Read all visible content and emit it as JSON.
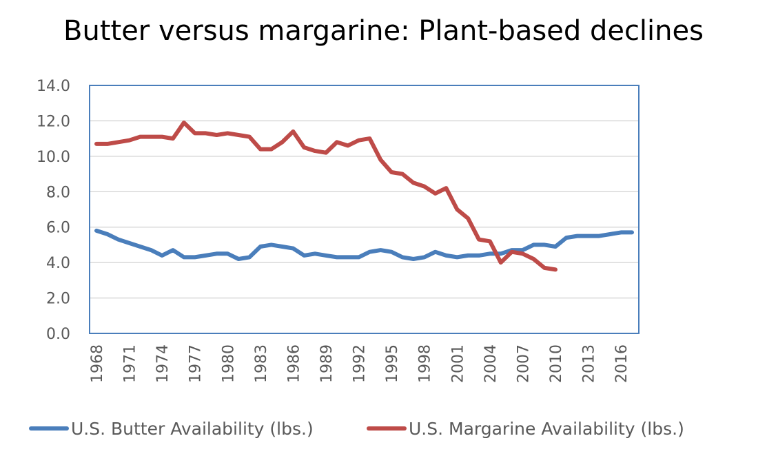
{
  "chart_data": {
    "type": "line",
    "title": "Butter versus margarine: Plant-based declines",
    "xlabel": "",
    "ylabel": "",
    "ylim": [
      0,
      14
    ],
    "yticks": [
      "0.0",
      "2.0",
      "4.0",
      "6.0",
      "8.0",
      "10.0",
      "12.0",
      "14.0"
    ],
    "xticks": [
      "1968",
      "1971",
      "1974",
      "1977",
      "1980",
      "1983",
      "1986",
      "1989",
      "1992",
      "1995",
      "1998",
      "2001",
      "2004",
      "2007",
      "2010",
      "2013",
      "2016"
    ],
    "grid": true,
    "legend_position": "bottom",
    "x": [
      1968,
      1969,
      1970,
      1971,
      1972,
      1973,
      1974,
      1975,
      1976,
      1977,
      1978,
      1979,
      1980,
      1981,
      1982,
      1983,
      1984,
      1985,
      1986,
      1987,
      1988,
      1989,
      1990,
      1991,
      1992,
      1993,
      1994,
      1995,
      1996,
      1997,
      1998,
      1999,
      2000,
      2001,
      2002,
      2003,
      2004,
      2005,
      2006,
      2007,
      2008,
      2009,
      2010,
      2011,
      2012,
      2013,
      2014,
      2015,
      2016,
      2017
    ],
    "series": [
      {
        "name": "U.S. Butter Availability (lbs.)",
        "color": "#4a7ebb",
        "values": [
          5.8,
          5.6,
          5.3,
          5.1,
          4.9,
          4.7,
          4.4,
          4.7,
          4.3,
          4.3,
          4.4,
          4.5,
          4.5,
          4.2,
          4.3,
          4.9,
          5.0,
          4.9,
          4.8,
          4.4,
          4.5,
          4.4,
          4.3,
          4.3,
          4.3,
          4.6,
          4.7,
          4.6,
          4.3,
          4.2,
          4.3,
          4.6,
          4.4,
          4.3,
          4.4,
          4.4,
          4.5,
          4.5,
          4.7,
          4.7,
          5.0,
          5.0,
          4.9,
          5.4,
          5.5,
          5.5,
          5.5,
          5.6,
          5.7,
          5.7
        ]
      },
      {
        "name": "U.S. Margarine Availability (lbs.)",
        "color": "#be4b48",
        "values": [
          10.7,
          10.7,
          10.8,
          10.9,
          11.1,
          11.1,
          11.1,
          11.0,
          11.9,
          11.3,
          11.3,
          11.2,
          11.3,
          11.2,
          11.1,
          10.4,
          10.4,
          10.8,
          11.4,
          10.5,
          10.3,
          10.2,
          10.8,
          10.6,
          10.9,
          11.0,
          9.8,
          9.1,
          9.0,
          8.5,
          8.3,
          7.9,
          8.2,
          7.0,
          6.5,
          5.3,
          5.2,
          4.0,
          4.6,
          4.5,
          4.2,
          3.7,
          3.6,
          null,
          null,
          null,
          null,
          null,
          null,
          null
        ]
      }
    ]
  }
}
